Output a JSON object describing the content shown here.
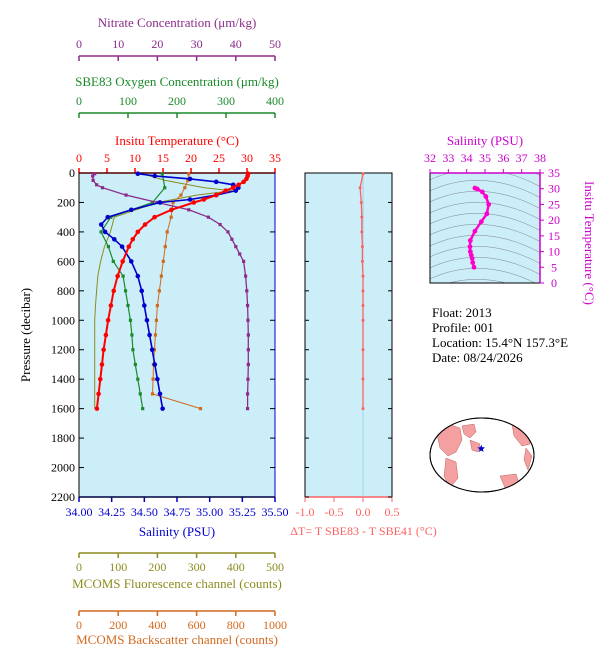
{
  "colors": {
    "nitrate": "#8B2C8B",
    "oxygen": "#1A8A2A",
    "temperature": "#FF0000",
    "salinity": "#0000CC",
    "fluorescence": "#8C8C1E",
    "backscatter": "#D2691E",
    "delta_t": "#FF6060",
    "ts_curve": "#FF00CC",
    "ts_axis": "#CC00CC",
    "panel_bg": "#CCEEF8"
  },
  "info": {
    "float": "Float:  2013",
    "profile": "Profile:  001",
    "location": "Location:  15.4°N  157.3°E",
    "date": "Date:  08/24/2026"
  },
  "chart_data": [
    {
      "type": "line",
      "panel": "profile",
      "ylabel": "Pressure (decibar)",
      "ylim": [
        2200,
        0
      ],
      "yticks": [
        "0",
        "200",
        "400",
        "600",
        "800",
        "1000",
        "1200",
        "1400",
        "1600",
        "1800",
        "2000",
        "2200"
      ],
      "axes": {
        "nitrate": {
          "label": "Nitrate Concentration (μm/kg)",
          "range": [
            0,
            50
          ],
          "ticks": [
            "0",
            "10",
            "20",
            "30",
            "40",
            "50"
          ]
        },
        "oxygen": {
          "label": "SBE83 Oxygen Concentration (μm/kg)",
          "range": [
            0,
            400
          ],
          "ticks": [
            "0",
            "100",
            "200",
            "300",
            "400"
          ]
        },
        "temperature": {
          "label": "Insitu Temperature (°C)",
          "range": [
            0,
            35
          ],
          "ticks": [
            "0",
            "5",
            "10",
            "15",
            "20",
            "25",
            "30",
            "35"
          ]
        },
        "salinity": {
          "label": "Salinity (PSU)",
          "range": [
            34.0,
            35.5
          ],
          "ticks": [
            "34.00",
            "34.25",
            "34.50",
            "34.75",
            "35.00",
            "35.25",
            "35.50"
          ]
        },
        "fluorescence": {
          "label": "MCOMS Fluorescence channel (counts)",
          "range": [
            0,
            500
          ],
          "ticks": [
            "0",
            "100",
            "200",
            "300",
            "400",
            "500"
          ]
        },
        "backscatter": {
          "label": "MCOMS Backscatter channel (counts)",
          "range": [
            0,
            1000
          ],
          "ticks": [
            "0",
            "200",
            "400",
            "600",
            "800",
            "1000"
          ]
        }
      },
      "series": {
        "temperature": {
          "pressure": [
            5,
            20,
            40,
            60,
            80,
            100,
            120,
            150,
            180,
            200,
            250,
            300,
            350,
            400,
            450,
            500,
            600,
            700,
            800,
            900,
            1000,
            1100,
            1200,
            1300,
            1400,
            1500,
            1600
          ],
          "values": [
            30.2,
            30.1,
            29.9,
            29.4,
            28.5,
            27.5,
            26.2,
            24.5,
            22.3,
            20.5,
            16.5,
            13.5,
            11.8,
            10.5,
            9.6,
            8.9,
            7.8,
            6.9,
            6.2,
            5.7,
            5.2,
            4.8,
            4.4,
            4.1,
            3.8,
            3.5,
            3.2
          ]
        },
        "salinity": {
          "pressure": [
            5,
            20,
            40,
            60,
            80,
            100,
            120,
            150,
            180,
            200,
            250,
            300,
            350,
            400,
            450,
            500,
            600,
            700,
            800,
            900,
            1000,
            1100,
            1200,
            1300,
            1400,
            1500,
            1600
          ],
          "values": [
            34.45,
            34.58,
            34.85,
            35.05,
            35.18,
            35.22,
            35.2,
            35.05,
            34.85,
            34.62,
            34.4,
            34.22,
            34.17,
            34.2,
            34.27,
            34.33,
            34.4,
            34.45,
            34.48,
            34.5,
            34.52,
            34.54,
            34.56,
            34.58,
            34.6,
            34.62,
            34.64
          ]
        },
        "nitrate": {
          "pressure": [
            5,
            20,
            50,
            80,
            100,
            150,
            200,
            250,
            300,
            350,
            400,
            450,
            500,
            550,
            600,
            700,
            800,
            900,
            1000,
            1100,
            1200,
            1300,
            1400,
            1500,
            1600
          ],
          "values": [
            4,
            3.5,
            3.6,
            4.5,
            6,
            12,
            20,
            28,
            33,
            36,
            38,
            39,
            40,
            41,
            42,
            42.5,
            42.8,
            43,
            43.1,
            43.2,
            43.2,
            43.2,
            43.1,
            43,
            43
          ]
        },
        "oxygen": {
          "pressure": [
            5,
            100,
            200,
            300,
            400,
            500,
            600,
            700,
            800,
            900,
            1000,
            1100,
            1200,
            1300,
            1400,
            1500,
            1600
          ],
          "values": [
            170,
            175,
            150,
            65,
            45,
            60,
            70,
            90,
            95,
            100,
            105,
            108,
            110,
            115,
            120,
            125,
            130
          ]
        },
        "backscatter": {
          "pressure": [
            5,
            50,
            100,
            150,
            200,
            300,
            400,
            500,
            600,
            700,
            800,
            900,
            1000,
            1100,
            1200,
            1300,
            1400,
            1500,
            1600
          ],
          "values": [
            560,
            555,
            540,
            520,
            480,
            470,
            450,
            440,
            430,
            420,
            410,
            400,
            395,
            390,
            385,
            380,
            378,
            375,
            620
          ]
        },
        "fluorescence": {
          "pressure": [
            5,
            50,
            100,
            120,
            150,
            200,
            300,
            400,
            500,
            600,
            700,
            800,
            900,
            1000,
            1100,
            1200,
            1300,
            1400,
            1500,
            1600
          ],
          "values": [
            160,
            220,
            320,
            390,
            300,
            200,
            90,
            80,
            65,
            55,
            48,
            45,
            42,
            40,
            40,
            40,
            40,
            40,
            40,
            40
          ]
        }
      }
    },
    {
      "type": "line",
      "panel": "delta-t",
      "xlabel": "ΔT= T SBE83 - T SBE41 (°C)",
      "xlim": [
        -1.0,
        0.5
      ],
      "xticks": [
        "-1.0",
        "-0.5",
        "0.0",
        "0.5"
      ],
      "pressure": [
        5,
        100,
        200,
        300,
        400,
        500,
        600,
        700,
        800,
        900,
        1000,
        1200,
        1400,
        1600
      ],
      "values": [
        0.0,
        -0.05,
        -0.03,
        -0.02,
        -0.02,
        -0.01,
        -0.01,
        0.0,
        0.0,
        0.0,
        0.0,
        0.0,
        0.0,
        0.0
      ]
    },
    {
      "type": "line",
      "panel": "ts-diagram",
      "xlabel": "Salinity (PSU)",
      "ylabel": "Insitu Temperature (°C)",
      "xlim": [
        32,
        38
      ],
      "ylim": [
        0,
        35
      ],
      "xticks": [
        "32",
        "33",
        "34",
        "35",
        "36",
        "37",
        "38"
      ],
      "yticks": [
        "0",
        "5",
        "10",
        "15",
        "20",
        "25",
        "30",
        "35"
      ],
      "salinity": [
        34.45,
        34.58,
        34.85,
        35.05,
        35.2,
        35.1,
        34.8,
        34.45,
        34.2,
        34.18,
        34.2,
        34.25,
        34.3,
        34.33,
        34.4
      ],
      "temperature": [
        30.2,
        29.9,
        29.0,
        27.5,
        25.0,
        22.0,
        19.5,
        16.5,
        13.5,
        11.5,
        10.0,
        8.9,
        7.8,
        6.5,
        5.0
      ]
    },
    {
      "type": "map",
      "panel": "location-map",
      "marker": {
        "lat": 15.4,
        "lon": 157.3
      }
    }
  ]
}
